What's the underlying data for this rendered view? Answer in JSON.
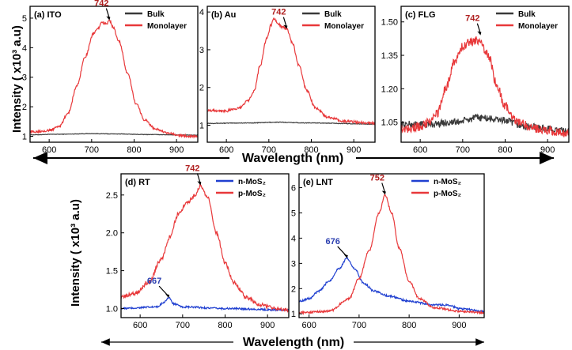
{
  "figure": {
    "top_ylabel": "Intensity ( x10³ a.u)",
    "top_xlabel": "Wavelength (nm)",
    "bottom_ylabel": "Intensity ( x10³ a.u)",
    "bottom_xlabel": "Wavelength (nm)"
  },
  "colors": {
    "red": "#e8383a",
    "black": "#3a3a3a",
    "blue": "#1f3fd0",
    "peak_red": "#b02020",
    "peak_blue": "#2b3fb0"
  },
  "chart_data": [
    {
      "id": "a",
      "type": "line",
      "title": "(a) ITO",
      "xlim": [
        555,
        950
      ],
      "ylim": [
        0.8,
        5.4
      ],
      "xticks": [
        600,
        700,
        800,
        900
      ],
      "yticks": [
        1,
        2,
        3,
        4,
        5
      ],
      "ytick_labels": [
        "1",
        "2",
        "3",
        "4",
        "5"
      ],
      "legend_position": "top-right",
      "peak_label": {
        "text": "742",
        "x": 742,
        "y": 4.93,
        "color": "peak_red"
      },
      "series": [
        {
          "name": "Bulk",
          "color": "black",
          "noise": 0.008,
          "points": [
            [
              555,
              1.05
            ],
            [
              620,
              1.07
            ],
            [
              700,
              1.09
            ],
            [
              760,
              1.08
            ],
            [
              830,
              1.06
            ],
            [
              950,
              1.04
            ]
          ]
        },
        {
          "name": "Monolayer",
          "color": "red",
          "noise": 0.04,
          "points": [
            [
              555,
              1.15
            ],
            [
              600,
              1.2
            ],
            [
              625,
              1.35
            ],
            [
              645,
              1.8
            ],
            [
              665,
              2.7
            ],
            [
              685,
              3.7
            ],
            [
              705,
              4.5
            ],
            [
              715,
              4.65
            ],
            [
              725,
              4.85
            ],
            [
              735,
              4.8
            ],
            [
              742,
              4.93
            ],
            [
              750,
              4.7
            ],
            [
              765,
              4.2
            ],
            [
              785,
              3.1
            ],
            [
              805,
              2.1
            ],
            [
              825,
              1.55
            ],
            [
              850,
              1.25
            ],
            [
              880,
              1.1
            ],
            [
              910,
              1.02
            ],
            [
              950,
              1.0
            ]
          ]
        }
      ]
    },
    {
      "id": "b",
      "type": "line",
      "title": "(b) Au",
      "xlim": [
        555,
        950
      ],
      "ylim": [
        0.55,
        4.15
      ],
      "xticks": [
        600,
        700,
        800,
        900
      ],
      "yticks": [
        1,
        2,
        3,
        4
      ],
      "ytick_labels": [
        "1",
        "2",
        "3",
        "4"
      ],
      "legend_position": "top-right",
      "peak_label": {
        "text": "742",
        "x": 742,
        "y": 3.55,
        "color": "peak_red"
      },
      "series": [
        {
          "name": "Bulk",
          "color": "black",
          "noise": 0.008,
          "points": [
            [
              555,
              1.05
            ],
            [
              650,
              1.06
            ],
            [
              720,
              1.08
            ],
            [
              800,
              1.06
            ],
            [
              950,
              1.03
            ]
          ]
        },
        {
          "name": "Monolayer",
          "color": "red",
          "noise": 0.035,
          "points": [
            [
              555,
              1.4
            ],
            [
              600,
              1.38
            ],
            [
              630,
              1.45
            ],
            [
              650,
              1.65
            ],
            [
              665,
              1.9
            ],
            [
              680,
              2.6
            ],
            [
              695,
              3.3
            ],
            [
              705,
              3.65
            ],
            [
              712,
              3.82
            ],
            [
              722,
              3.7
            ],
            [
              732,
              3.6
            ],
            [
              742,
              3.55
            ],
            [
              755,
              3.2
            ],
            [
              770,
              2.6
            ],
            [
              790,
              1.9
            ],
            [
              810,
              1.45
            ],
            [
              840,
              1.2
            ],
            [
              880,
              1.1
            ],
            [
              950,
              1.05
            ]
          ]
        }
      ]
    },
    {
      "id": "c",
      "type": "line",
      "title": "(c) FLG",
      "xlim": [
        555,
        950
      ],
      "ylim": [
        0.96,
        1.57
      ],
      "xticks": [
        600,
        700,
        800,
        900
      ],
      "yticks": [
        1.05,
        1.2,
        1.35,
        1.5
      ],
      "ytick_labels": [
        "1.05",
        "1.20",
        "1.35",
        "1.50"
      ],
      "legend_position": "top-right",
      "peak_label": {
        "text": "742",
        "x": 742,
        "y": 1.44,
        "color": "peak_red"
      },
      "series": [
        {
          "name": "Bulk",
          "color": "black",
          "noise": 0.016,
          "points": [
            [
              555,
              1.04
            ],
            [
              620,
              1.04
            ],
            [
              680,
              1.05
            ],
            [
              740,
              1.07
            ],
            [
              790,
              1.06
            ],
            [
              850,
              1.03
            ],
            [
              950,
              1.01
            ]
          ]
        },
        {
          "name": "Monolayer",
          "color": "red",
          "noise": 0.02,
          "points": [
            [
              555,
              1.02
            ],
            [
              600,
              1.03
            ],
            [
              620,
              1.05
            ],
            [
              640,
              1.09
            ],
            [
              660,
              1.2
            ],
            [
              680,
              1.32
            ],
            [
              700,
              1.39
            ],
            [
              720,
              1.41
            ],
            [
              740,
              1.42
            ],
            [
              760,
              1.35
            ],
            [
              780,
              1.22
            ],
            [
              800,
              1.12
            ],
            [
              830,
              1.05
            ],
            [
              870,
              1.02
            ],
            [
              950,
              1.0
            ]
          ]
        }
      ]
    },
    {
      "id": "d",
      "type": "line",
      "title": "(d) RT",
      "xlim": [
        555,
        950
      ],
      "ylim": [
        0.88,
        2.78
      ],
      "xticks": [
        600,
        700,
        800,
        900
      ],
      "yticks": [
        1.0,
        1.5,
        2.0,
        2.5
      ],
      "ytick_labels": [
        "1.0",
        "1.5",
        "2.0",
        "2.5"
      ],
      "legend_position": "top-right",
      "peak_labels": [
        {
          "text": "742",
          "x": 742,
          "y": 2.63,
          "color": "peak_red"
        },
        {
          "text": "667",
          "x": 667,
          "y": 1.14,
          "color": "peak_blue"
        }
      ],
      "series": [
        {
          "name": "n-MoS₂",
          "color": "blue",
          "noise": 0.012,
          "points": [
            [
              555,
              1.0
            ],
            [
              640,
              1.02
            ],
            [
              655,
              1.08
            ],
            [
              667,
              1.14
            ],
            [
              680,
              1.06
            ],
            [
              700,
              1.02
            ],
            [
              800,
              1.0
            ],
            [
              950,
              0.98
            ]
          ]
        },
        {
          "name": "p-MoS₂",
          "color": "red",
          "noise": 0.025,
          "points": [
            [
              555,
              1.15
            ],
            [
              590,
              1.2
            ],
            [
              620,
              1.35
            ],
            [
              650,
              1.65
            ],
            [
              670,
              1.95
            ],
            [
              690,
              2.25
            ],
            [
              710,
              2.4
            ],
            [
              730,
              2.5
            ],
            [
              742,
              2.63
            ],
            [
              760,
              2.45
            ],
            [
              780,
              2.0
            ],
            [
              800,
              1.6
            ],
            [
              820,
              1.35
            ],
            [
              850,
              1.15
            ],
            [
              880,
              1.05
            ],
            [
              920,
              1.0
            ],
            [
              950,
              0.98
            ]
          ]
        }
      ]
    },
    {
      "id": "e",
      "type": "line",
      "title": "(e) LNT",
      "xlim": [
        580,
        950
      ],
      "ylim": [
        0.85,
        6.55
      ],
      "xticks": [
        600,
        700,
        800,
        900
      ],
      "yticks": [
        1,
        2,
        3,
        4,
        5,
        6
      ],
      "ytick_labels": [
        "1",
        "2",
        "3",
        "4",
        "5",
        "6"
      ],
      "legend_position": "top-right",
      "peak_labels": [
        {
          "text": "752",
          "x": 752,
          "y": 5.72,
          "color": "peak_red"
        },
        {
          "text": "676",
          "x": 676,
          "y": 3.2,
          "color": "peak_blue"
        }
      ],
      "series": [
        {
          "name": "n-MoS₂",
          "color": "blue",
          "noise": 0.04,
          "points": [
            [
              580,
              1.5
            ],
            [
              600,
              1.6
            ],
            [
              620,
              1.9
            ],
            [
              640,
              2.3
            ],
            [
              660,
              2.8
            ],
            [
              676,
              3.2
            ],
            [
              690,
              2.8
            ],
            [
              710,
              2.2
            ],
            [
              730,
              1.9
            ],
            [
              760,
              1.7
            ],
            [
              800,
              1.5
            ],
            [
              850,
              1.35
            ],
            [
              880,
              1.35
            ],
            [
              900,
              1.2
            ],
            [
              950,
              1.1
            ]
          ]
        },
        {
          "name": "p-MoS₂",
          "color": "red",
          "noise": 0.04,
          "points": [
            [
              580,
              1.05
            ],
            [
              640,
              1.1
            ],
            [
              680,
              1.6
            ],
            [
              700,
              2.4
            ],
            [
              720,
              3.5
            ],
            [
              740,
              5.0
            ],
            [
              752,
              5.72
            ],
            [
              765,
              5.0
            ],
            [
              780,
              3.6
            ],
            [
              800,
              2.3
            ],
            [
              820,
              1.6
            ],
            [
              850,
              1.25
            ],
            [
              900,
              1.1
            ],
            [
              950,
              1.05
            ]
          ]
        }
      ]
    }
  ]
}
